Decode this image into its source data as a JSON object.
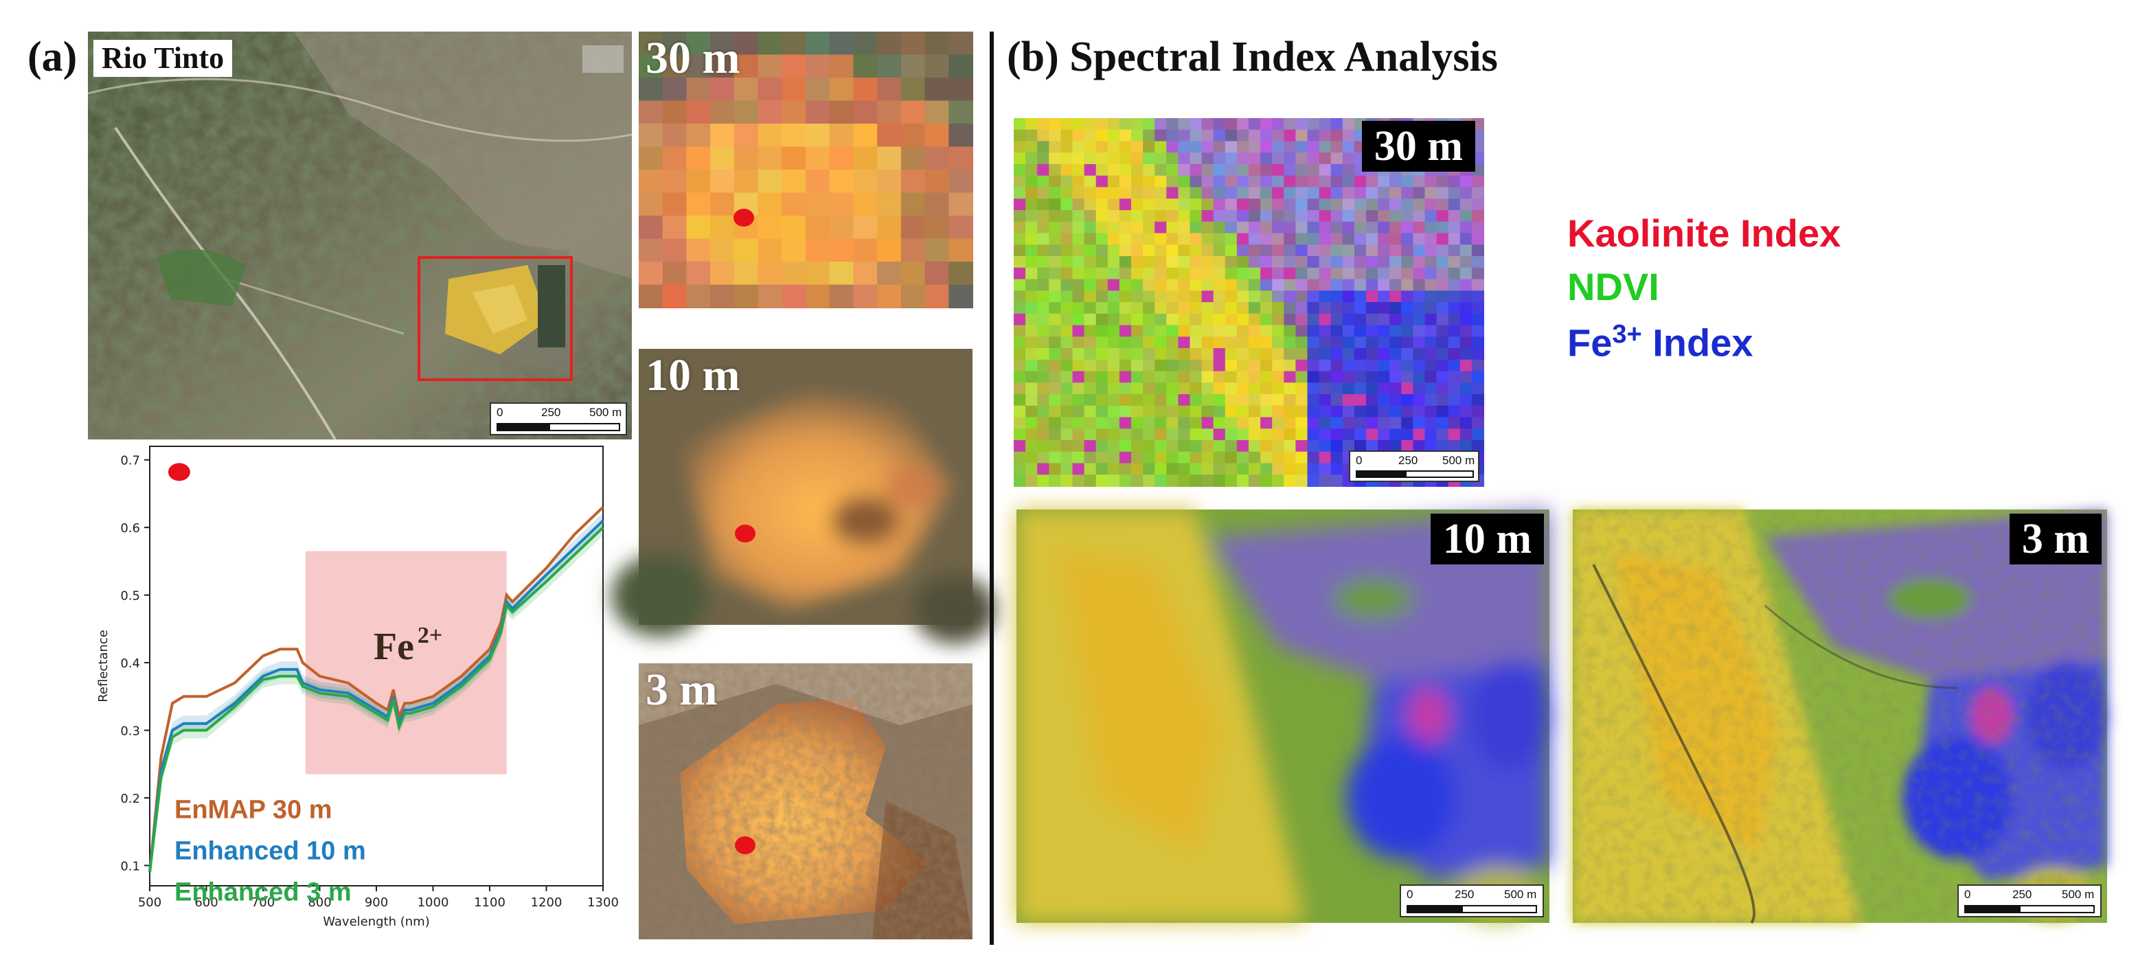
{
  "panel_a": {
    "label": "(a)",
    "site_title": "Rio Tinto",
    "scalebar": {
      "zero": "0",
      "mid": "250",
      "end": "500 m"
    },
    "plot": {
      "yticks": [
        "0.1",
        "0.2",
        "0.3",
        "0.4",
        "0.5",
        "0.6",
        "0.7"
      ],
      "xticks": [
        "500",
        "600",
        "700",
        "800",
        "900",
        "1000",
        "1100",
        "1200",
        "1300"
      ],
      "ylabel": "Reflectance",
      "xlabel": "Wavelength (nm)",
      "annotation_main": "Fe",
      "annotation_sup": "2+",
      "legend": [
        "EnMAP 30 m",
        "Enhanced 10 m",
        "Enhanced 3 m"
      ]
    },
    "tiles": [
      "30 m",
      "10 m",
      "3 m"
    ]
  },
  "panel_b": {
    "label": "(b)",
    "title": "Spectral Index Analysis",
    "tiles": [
      "30 m",
      "10 m",
      "3 m"
    ],
    "scalebar": {
      "zero": "0",
      "mid": "250",
      "end": "500 m"
    },
    "legend": {
      "kaolinite": "Kaolinite Index",
      "ndvi": "NDVI",
      "fe_main": "Fe",
      "fe_sup": "3+",
      "fe_rest": " Index"
    }
  },
  "colors": {
    "enmap": "#c0622b",
    "enhanced10": "#1f7fbf",
    "enhanced3": "#2aa84a",
    "kaolinite": "#e8112d",
    "ndvi": "#22cc22",
    "fe": "#1a2bd0",
    "marker": "#e8101a",
    "highlight_box": "#e62020",
    "fe2_region": "#f7c9c9"
  },
  "chart_data": {
    "type": "line",
    "xlabel": "Wavelength (nm)",
    "ylabel": "Reflectance",
    "xlim": [
      500,
      1300
    ],
    "ylim": [
      0.07,
      0.72
    ],
    "series": [
      {
        "name": "EnMAP 30 m",
        "x": [
          500,
          520,
          540,
          560,
          600,
          650,
          700,
          730,
          760,
          770,
          800,
          850,
          900,
          920,
          930,
          940,
          950,
          960,
          1000,
          1050,
          1100,
          1120,
          1130,
          1140,
          1200,
          1250,
          1300
        ],
        "y": [
          0.09,
          0.26,
          0.34,
          0.35,
          0.35,
          0.37,
          0.41,
          0.42,
          0.42,
          0.4,
          0.38,
          0.37,
          0.34,
          0.33,
          0.36,
          0.32,
          0.34,
          0.34,
          0.35,
          0.38,
          0.42,
          0.46,
          0.5,
          0.49,
          0.54,
          0.59,
          0.63
        ]
      },
      {
        "name": "Enhanced 10 m",
        "x": [
          500,
          520,
          540,
          560,
          600,
          650,
          700,
          730,
          760,
          770,
          800,
          850,
          900,
          920,
          930,
          940,
          950,
          960,
          1000,
          1050,
          1100,
          1120,
          1130,
          1140,
          1200,
          1250,
          1300
        ],
        "y": [
          0.09,
          0.24,
          0.3,
          0.31,
          0.31,
          0.34,
          0.38,
          0.39,
          0.39,
          0.37,
          0.36,
          0.355,
          0.33,
          0.32,
          0.35,
          0.31,
          0.33,
          0.33,
          0.34,
          0.37,
          0.41,
          0.45,
          0.49,
          0.48,
          0.53,
          0.57,
          0.61
        ]
      },
      {
        "name": "Enhanced 3 m",
        "x": [
          500,
          520,
          540,
          560,
          600,
          650,
          700,
          730,
          760,
          770,
          800,
          850,
          900,
          920,
          930,
          940,
          950,
          960,
          1000,
          1050,
          1100,
          1120,
          1130,
          1140,
          1200,
          1250,
          1300
        ],
        "y": [
          0.09,
          0.23,
          0.29,
          0.3,
          0.3,
          0.335,
          0.375,
          0.38,
          0.38,
          0.365,
          0.355,
          0.35,
          0.325,
          0.315,
          0.345,
          0.305,
          0.325,
          0.325,
          0.335,
          0.365,
          0.405,
          0.445,
          0.485,
          0.475,
          0.52,
          0.56,
          0.6
        ]
      }
    ],
    "annotations": [
      {
        "text": "Fe2+",
        "region_x": [
          775,
          1130
        ]
      }
    ],
    "legend_location": "lower-left",
    "grid": false
  }
}
